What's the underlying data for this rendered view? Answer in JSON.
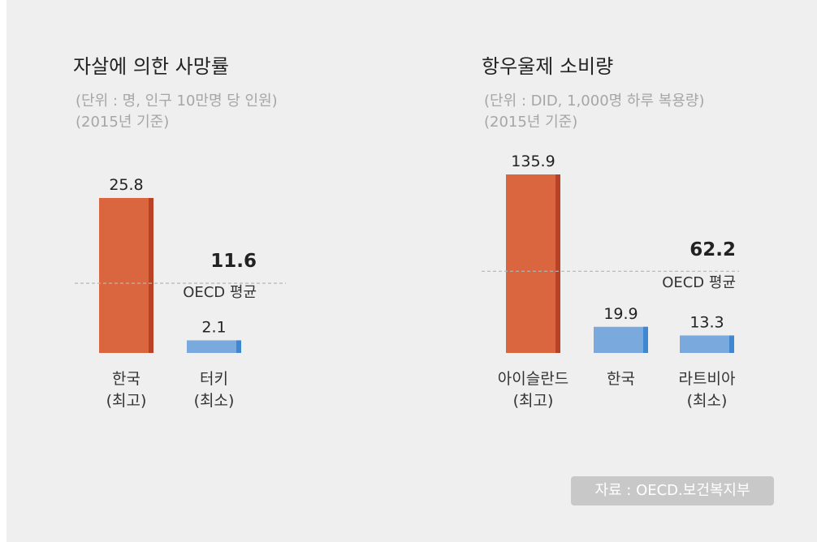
{
  "source": "자료 : OECD.보건복지부",
  "colors": {
    "max_bar": "#d9663f",
    "max_bar_edge": "#b94226",
    "other_bar": "#79a9dd",
    "other_bar_edge": "#3f87d1",
    "avg_line": "#b5b5b5"
  },
  "chart_data": [
    {
      "type": "bar",
      "title": "자살에 의한 사망률",
      "subtitle": [
        "(단위 : 명, 인구 10만명 당 인원)",
        "(2015년 기준)"
      ],
      "categories": [
        [
          "한국",
          "(최고)"
        ],
        [
          "터키",
          "(최소)"
        ]
      ],
      "values": [
        25.8,
        2.1
      ],
      "value_labels": [
        "25.8",
        "2.1"
      ],
      "highlight": [
        "max",
        "min"
      ],
      "reference_line": {
        "value": 11.6,
        "value_label": "11.6",
        "label": "OECD 평균"
      },
      "ylim": [
        0,
        25.8
      ]
    },
    {
      "type": "bar",
      "title": "항우울제 소비량",
      "subtitle": [
        "(단위 : DID, 1,000명 하루 복용량)",
        "(2015년 기준)"
      ],
      "categories": [
        [
          "아이슬란드",
          "(최고)"
        ],
        [
          "한국"
        ],
        [
          "라트비아",
          "(최소)"
        ]
      ],
      "values": [
        135.9,
        19.9,
        13.3
      ],
      "value_labels": [
        "135.9",
        "19.9",
        "13.3"
      ],
      "highlight": [
        "max",
        "other",
        "min"
      ],
      "reference_line": {
        "value": 62.2,
        "value_label": "62.2",
        "label": "OECD 평균"
      },
      "ylim": [
        0,
        135.9
      ]
    }
  ]
}
